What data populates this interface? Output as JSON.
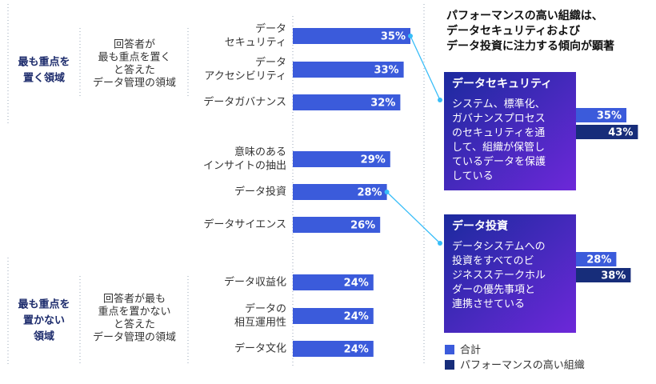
{
  "chart_data": {
    "type": "bar",
    "orientation": "horizontal",
    "xlim": [
      0,
      100
    ],
    "value_suffix": "%",
    "categories": [
      {
        "lines": [
          "データ",
          "セキュリティ"
        ],
        "value": 35
      },
      {
        "lines": [
          "データ",
          "アクセシビリティ"
        ],
        "value": 33
      },
      {
        "lines": [
          "データガバナンス"
        ],
        "value": 32
      },
      {
        "lines": [
          "意味のある",
          "インサイトの抽出"
        ],
        "value": 29
      },
      {
        "lines": [
          "データ投資"
        ],
        "value": 28
      },
      {
        "lines": [
          "データサイエンス"
        ],
        "value": 26
      },
      {
        "lines": [
          "データ収益化"
        ],
        "value": 24
      },
      {
        "lines": [
          "データの",
          "相互運用性"
        ],
        "value": 24
      },
      {
        "lines": [
          "データ文化"
        ],
        "value": 24
      }
    ],
    "groups": [
      {
        "title": [
          "最も重点を",
          "置く領域"
        ],
        "description": [
          "回答者が",
          "最も重点を置く",
          "と答えた",
          "データ管理の領域"
        ]
      },
      {
        "title": [
          "最も重点を",
          "置かない",
          "領域"
        ],
        "description": [
          "回答者が最も",
          "重点を置かない",
          "と答えた",
          "データ管理の領域"
        ]
      }
    ],
    "headline": [
      "パフォーマンスの高い組織は、",
      "データセキュリティおよび",
      "データ投資に注力する傾向が顕著"
    ],
    "callouts": [
      {
        "title": "データセキュリティ",
        "body": [
          "システム、標準化、",
          "ガバナンスプロセス",
          "のセキュリティを通",
          "して、組織が保管し",
          "ているデータを保護",
          "している"
        ],
        "total": 35,
        "high_performers": 43
      },
      {
        "title": "データ投資",
        "body": [
          "データシステムへの",
          "投資をすべてのビ",
          "ジネスステークホル",
          "ダーの優先事項と",
          "連携させている"
        ],
        "total": 28,
        "high_performers": 38
      }
    ],
    "legend": [
      "合計",
      "パフォーマンスの高い組織"
    ],
    "colors": {
      "total": "#3b5bdb",
      "high_performers": "#172d7a",
      "card_gradient_start": "#1b2a9e",
      "card_gradient_end": "#6d28d9",
      "group_title": "#1b2a6b",
      "connector": "#38bdf8",
      "divider": "#9aa5b8"
    }
  }
}
